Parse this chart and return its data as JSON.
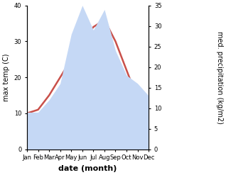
{
  "months": [
    "Jan",
    "Feb",
    "Mar",
    "Apr",
    "May",
    "Jun",
    "Jul",
    "Aug",
    "Sep",
    "Oct",
    "Nov",
    "Dec"
  ],
  "temp": [
    10,
    11,
    15,
    20,
    25,
    30,
    34,
    36,
    30,
    22,
    14,
    10
  ],
  "precip": [
    9,
    9,
    12,
    16,
    28,
    35,
    29,
    34,
    24,
    18,
    16,
    13
  ],
  "temp_color": "#c9504a",
  "precip_fill_color": "#c5d8f5",
  "precip_edge_color": "#c5d8f5",
  "temp_ylim": [
    0,
    40
  ],
  "precip_ylim": [
    0,
    35
  ],
  "xlabel": "date (month)",
  "ylabel_left": "max temp (C)",
  "ylabel_right": "med. precipitation (kg/m2)",
  "bg_color": "#ffffff",
  "temp_linewidth": 1.8,
  "label_fontsize": 7,
  "tick_fontsize": 6,
  "xlabel_fontsize": 8
}
